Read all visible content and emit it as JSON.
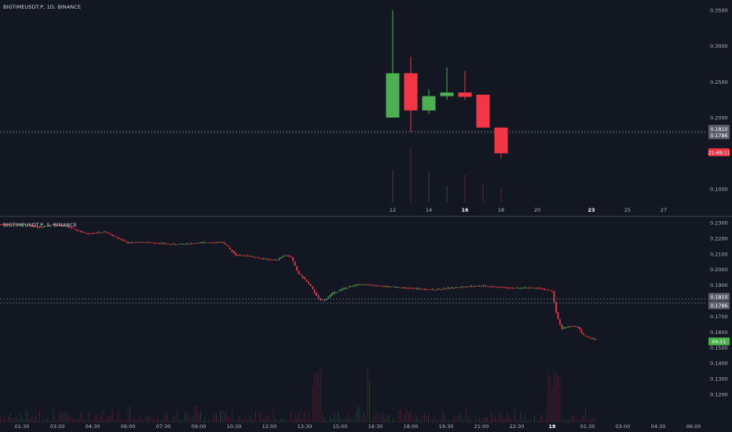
{
  "colors": {
    "background": "#131722",
    "up": "#4caf50",
    "down": "#f23645",
    "grid_text": "#b2b5be",
    "price_tag_gray": "#5d606b",
    "countdown_top": "#f23645",
    "countdown_bottom": "#4caf50"
  },
  "chart_data": [
    {
      "type": "candlestick",
      "symbol_label": "BIGTIMEUSDT.P, 1D, BINANCE",
      "y_ticks": [
        "0.3500",
        "0.3000",
        "0.2500",
        "0.2000",
        "0.1000"
      ],
      "ylim": [
        0.075,
        0.36
      ],
      "x_ticks": [
        {
          "label": "12",
          "x": 12,
          "bold": false
        },
        {
          "label": "14",
          "x": 14,
          "bold": false
        },
        {
          "label": "16",
          "x": 16,
          "bold": true
        },
        {
          "label": "18",
          "x": 18,
          "bold": false
        },
        {
          "label": "20",
          "x": 20,
          "bold": false
        },
        {
          "label": "23",
          "x": 23,
          "bold": true
        },
        {
          "label": "25",
          "x": 25,
          "bold": false
        },
        {
          "label": "27",
          "x": 27,
          "bold": false
        }
      ],
      "xlim": [
        11.2,
        27.9
      ],
      "candles": [
        {
          "x": 12,
          "open": 0.2,
          "high": 0.35,
          "low": 0.2,
          "close": 0.262,
          "volume": 0.6
        },
        {
          "x": 13,
          "open": 0.262,
          "high": 0.285,
          "low": 0.18,
          "close": 0.21,
          "volume": 1.0
        },
        {
          "x": 14,
          "open": 0.21,
          "high": 0.24,
          "low": 0.205,
          "close": 0.23,
          "volume": 0.55
        },
        {
          "x": 15,
          "open": 0.23,
          "high": 0.27,
          "low": 0.225,
          "close": 0.235,
          "volume": 0.3
        },
        {
          "x": 16,
          "open": 0.235,
          "high": 0.265,
          "low": 0.225,
          "close": 0.229,
          "volume": 0.5
        },
        {
          "x": 17,
          "open": 0.232,
          "high": 0.232,
          "low": 0.185,
          "close": 0.186,
          "volume": 0.35
        },
        {
          "x": 18,
          "open": 0.186,
          "high": 0.186,
          "low": 0.143,
          "close": 0.15,
          "volume": 0.25
        }
      ],
      "volume_max": 1.0,
      "price_tags": [
        {
          "value": 0.181,
          "label": "0.1810"
        },
        {
          "value": 0.1786,
          "label": "0.1786"
        }
      ],
      "countdown": {
        "value": 0.1515,
        "label": "21:49:11"
      }
    },
    {
      "type": "candlestick",
      "symbol_label": "BIGTIMEUSDT.P, 5, BINANCE",
      "y_ticks": [
        "0.2300",
        "0.2200",
        "0.2100",
        "0.2000",
        "0.1900",
        "0.1700",
        "0.1600",
        "0.1500",
        "0.1400",
        "0.1300",
        "0.1200"
      ],
      "ylim": [
        0.116,
        0.2315
      ],
      "x_ticks": [
        {
          "label": "01:30",
          "h": 1.5,
          "bold": false
        },
        {
          "label": "03:00",
          "h": 3,
          "bold": false
        },
        {
          "label": "04:30",
          "h": 4.5,
          "bold": false
        },
        {
          "label": "06:00",
          "h": 6,
          "bold": false
        },
        {
          "label": "07:30",
          "h": 7.5,
          "bold": false
        },
        {
          "label": "09:00",
          "h": 9,
          "bold": false
        },
        {
          "label": "10:30",
          "h": 10.5,
          "bold": false
        },
        {
          "label": "12:00",
          "h": 12,
          "bold": false
        },
        {
          "label": "13:30",
          "h": 13.5,
          "bold": false
        },
        {
          "label": "15:00",
          "h": 15,
          "bold": false
        },
        {
          "label": "16:30",
          "h": 16.5,
          "bold": false
        },
        {
          "label": "18:00",
          "h": 18,
          "bold": false
        },
        {
          "label": "19:30",
          "h": 19.5,
          "bold": false
        },
        {
          "label": "21:00",
          "h": 21,
          "bold": false
        },
        {
          "label": "22:30",
          "h": 22.5,
          "bold": false
        },
        {
          "label": "18",
          "h": 24,
          "bold": true
        },
        {
          "label": "01:30",
          "h": 25.5,
          "bold": false
        },
        {
          "label": "03:00",
          "h": 27,
          "bold": false
        },
        {
          "label": "04:30",
          "h": 28.5,
          "bold": false
        },
        {
          "label": "06:00",
          "h": 30,
          "bold": false
        }
      ],
      "xlim": [
        0.5,
        30.7
      ],
      "path_hours": [
        0.5,
        1.8,
        2.2,
        2.8,
        3.4,
        4.2,
        5.0,
        5.6,
        6.0,
        6.5,
        7.2,
        8.0,
        9.0,
        10.0,
        10.6,
        11.0,
        11.6,
        12.3,
        12.6,
        12.9,
        13.2,
        13.6,
        13.8,
        14.1,
        14.3,
        14.7,
        15.2,
        15.8,
        16.4,
        17.0,
        18.0,
        19.0,
        19.6,
        20.2,
        20.8,
        21.5,
        22.5,
        23.0,
        23.5,
        24.0,
        24.2,
        24.4,
        24.8,
        25.1,
        25.3,
        25.6,
        25.9
      ],
      "path_prices": [
        0.229,
        0.2285,
        0.227,
        0.229,
        0.2275,
        0.223,
        0.224,
        0.22,
        0.217,
        0.2175,
        0.217,
        0.216,
        0.217,
        0.2175,
        0.209,
        0.209,
        0.207,
        0.206,
        0.209,
        0.2085,
        0.198,
        0.192,
        0.188,
        0.181,
        0.18,
        0.185,
        0.188,
        0.1905,
        0.19,
        0.189,
        0.188,
        0.187,
        0.188,
        0.189,
        0.1895,
        0.189,
        0.188,
        0.1885,
        0.188,
        0.186,
        0.17,
        0.162,
        0.164,
        0.163,
        0.158,
        0.156,
        0.155
      ],
      "price_tags": [
        {
          "value": 0.181,
          "label": "0.1810"
        },
        {
          "value": 0.1786,
          "label": "0.1786"
        }
      ],
      "countdown": {
        "value": 0.1539,
        "label": "04:11"
      }
    }
  ]
}
